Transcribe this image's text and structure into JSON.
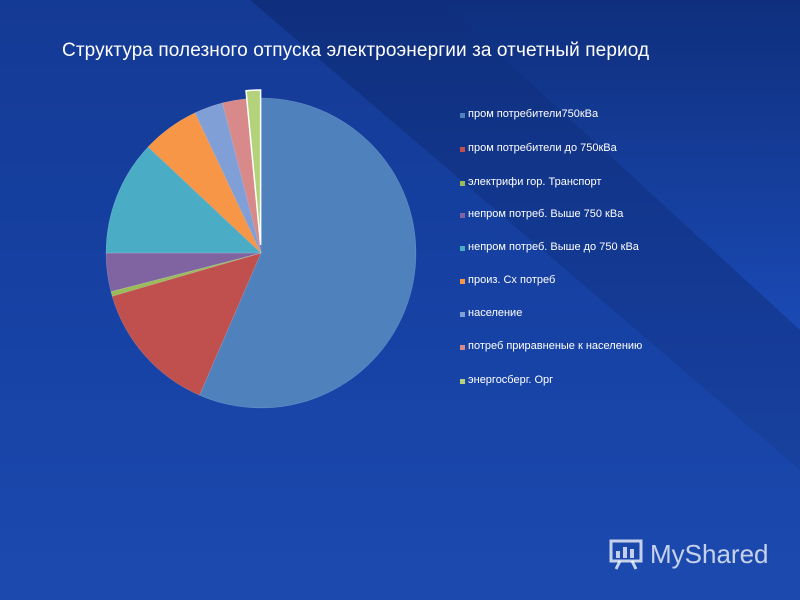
{
  "slide": {
    "title": "Структура полезного отпуска электроэнергии за отчетный период"
  },
  "watermark": {
    "text": "MyShared",
    "icon": "chart-board-icon"
  },
  "chart_data": {
    "type": "pie",
    "title": "Структура полезного отпуска электроэнергии за отчетный период",
    "legend_position": "right",
    "slices": [
      {
        "label": "пром потребители750кВа",
        "value": 56.5,
        "color": "#4f81bd"
      },
      {
        "label": "пром потребители до 750кВа",
        "value": 14.0,
        "color": "#c0504d"
      },
      {
        "label": "электрифи гор. Транспорт",
        "value": 0.5,
        "color": "#9bbb59"
      },
      {
        "label": "непром потреб. Выше 750 кВа",
        "value": 4.0,
        "color": "#8064a2"
      },
      {
        "label": "непром потреб. Выше до 750 кВа",
        "value": 12.0,
        "color": "#4bacc6"
      },
      {
        "label": "произ. Сх потреб",
        "value": 6.0,
        "color": "#f79646"
      },
      {
        "label": "население",
        "value": 3.0,
        "color": "#7f9fd6"
      },
      {
        "label": "потреб приравненые к населению",
        "value": 2.5,
        "color": "#d88a8a"
      },
      {
        "label": "энергосберг. Орг",
        "value": 1.5,
        "color": "#b3d27a"
      }
    ]
  }
}
